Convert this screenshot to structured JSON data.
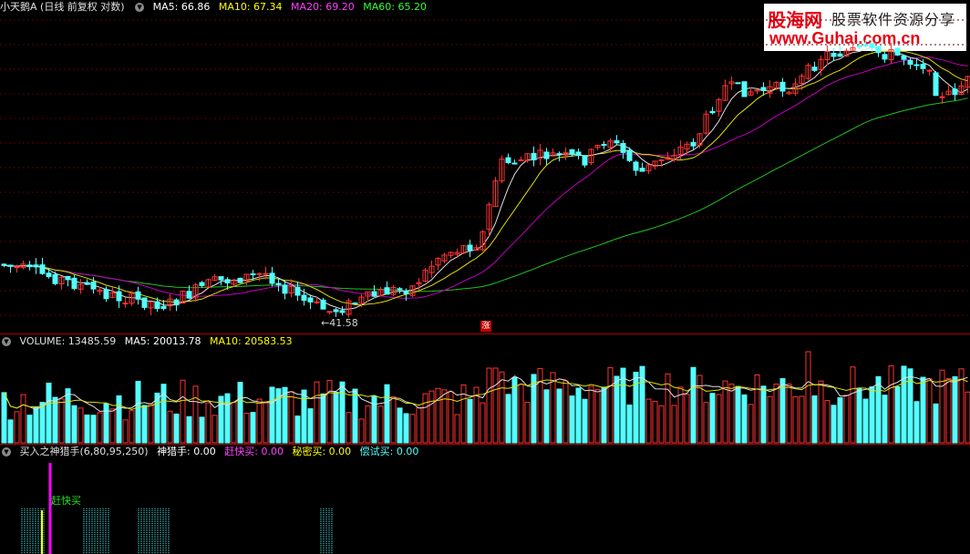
{
  "price_header": {
    "title": "小天鹅A (日线 前复权 对数)",
    "ma5": "MA5: 66.86",
    "ma10": "MA10: 67.34",
    "ma20": "MA20: 69.20",
    "ma60": "MA60: 65.20",
    "colors": {
      "ma5": "#ffffff",
      "ma10": "#ffff00",
      "ma20": "#ff00ff",
      "ma60": "#00ff00"
    }
  },
  "volume_header": {
    "title": "VOLUME: 13485.59",
    "ma5": "MA5: 20013.78",
    "ma10": "MA10: 20583.53"
  },
  "indicator_header": {
    "title": "买入之神猎手(6,80,95,250)",
    "v1": "神猎手: 0.00",
    "v2": "赶快买: 0.00",
    "v3": "秘密买: 0.00",
    "v4": "偿试买: 0.00"
  },
  "annotations": {
    "low_price": "←41.58",
    "limit_up_badge": "涨",
    "signal_label": "赶快买"
  },
  "watermark": {
    "brand": "股海网",
    "slogan": "股票软件资源分享",
    "url": "www.Guhai.com.cn"
  },
  "chart_data": {
    "type": "candlestick",
    "title": "小天鹅A (日线 前复权 对数)",
    "price_low_marker": 41.58,
    "up_color": "#ff3232",
    "down_color": "#54ffff",
    "moving_averages": [
      {
        "name": "MA5",
        "value": 66.86
      },
      {
        "name": "MA10",
        "value": 67.34
      },
      {
        "name": "MA20",
        "value": 69.2
      },
      {
        "name": "MA60",
        "value": 65.2
      }
    ],
    "volume": {
      "value": 13485.59,
      "ma5": 20013.78,
      "ma10": 20583.53
    },
    "indicator": {
      "name": "买入之神猎手",
      "params": [
        6,
        80,
        95,
        250
      ],
      "神猎手": 0.0,
      "赶快买": 0.0,
      "秘密买": 0.0,
      "偿试买": 0.0
    }
  }
}
